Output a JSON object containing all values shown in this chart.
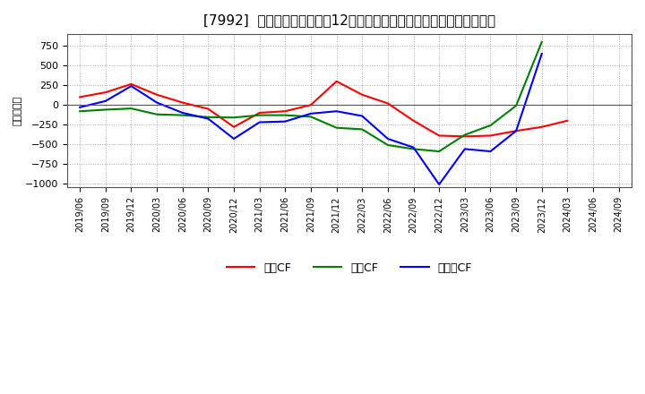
{
  "title": "[7992]  キャッシュフローの12か月移動合計の対前年同期増減額の推移",
  "ylabel": "（百万円）",
  "background_color": "#ffffff",
  "plot_bg_color": "#ffffff",
  "grid_color": "#aaaaaa",
  "x_labels": [
    "2019/06",
    "2019/09",
    "2019/12",
    "2020/03",
    "2020/06",
    "2020/09",
    "2020/12",
    "2021/03",
    "2021/06",
    "2021/09",
    "2021/12",
    "2022/03",
    "2022/06",
    "2022/09",
    "2022/12",
    "2023/03",
    "2023/06",
    "2023/09",
    "2023/12",
    "2024/03",
    "2024/06",
    "2024/09"
  ],
  "series": {
    "営業CF": {
      "color": "#ff0000",
      "values": [
        100,
        160,
        265,
        130,
        30,
        -50,
        -280,
        -100,
        -80,
        0,
        300,
        130,
        20,
        -200,
        -390,
        -400,
        -390,
        -330,
        -280,
        -200,
        null,
        null
      ]
    },
    "投資CF": {
      "color": "#008000",
      "values": [
        -80,
        -60,
        -45,
        -120,
        -130,
        -155,
        -160,
        -130,
        -130,
        -150,
        -290,
        -310,
        -510,
        -560,
        -590,
        -380,
        -260,
        -10,
        800,
        null,
        null,
        null
      ]
    },
    "フリーCF": {
      "color": "#0000ff",
      "values": [
        -30,
        50,
        240,
        30,
        -100,
        -175,
        -430,
        -220,
        -210,
        -110,
        -80,
        -140,
        -430,
        -540,
        -1010,
        -560,
        -590,
        -330,
        650,
        null,
        null,
        null
      ]
    }
  },
  "ylim": [
    -1050,
    900
  ],
  "yticks": [
    -1000,
    -750,
    -500,
    -250,
    0,
    250,
    500,
    750
  ],
  "legend_labels": [
    "営業CF",
    "投資CF",
    "フリーCF"
  ],
  "title_fontsize": 11,
  "axis_fontsize": 9
}
